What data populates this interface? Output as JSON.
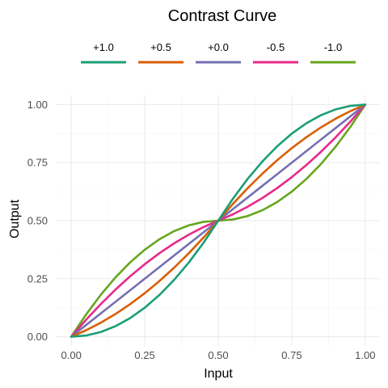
{
  "chart_data": {
    "type": "line",
    "title": "Contrast Curve",
    "xlabel": "Input",
    "ylabel": "Output",
    "xlim": [
      -0.05,
      1.05
    ],
    "ylim": [
      -0.04,
      1.04
    ],
    "x_ticks": [
      0.0,
      0.25,
      0.5,
      0.75,
      1.0
    ],
    "x_tick_labels": [
      "0.00",
      "0.25",
      "0.50",
      "0.75",
      "1.00"
    ],
    "y_ticks": [
      0.0,
      0.25,
      0.5,
      0.75,
      1.0
    ],
    "y_tick_labels": [
      "0.00",
      "0.25",
      "0.50",
      "0.75",
      "1.00"
    ],
    "grid": true,
    "legend_position": "top",
    "x": [
      0.0,
      0.05,
      0.1,
      0.15,
      0.2,
      0.25,
      0.3,
      0.35,
      0.4,
      0.45,
      0.5,
      0.55,
      0.6,
      0.65,
      0.7,
      0.75,
      0.8,
      0.85,
      0.9,
      0.95,
      1.0
    ],
    "series": [
      {
        "name": "+1.0",
        "color": "#1b9e77",
        "values": [
          0.0,
          0.005,
          0.02,
          0.045,
          0.08,
          0.125,
          0.18,
          0.245,
          0.32,
          0.405,
          0.5,
          0.595,
          0.68,
          0.755,
          0.82,
          0.875,
          0.92,
          0.955,
          0.98,
          0.995,
          1.0
        ]
      },
      {
        "name": "+0.5",
        "color": "#d95f02",
        "values": [
          0.0,
          0.0275,
          0.06,
          0.0975,
          0.14,
          0.1875,
          0.24,
          0.2975,
          0.36,
          0.4275,
          0.5,
          0.5725,
          0.64,
          0.7025,
          0.76,
          0.8125,
          0.86,
          0.9025,
          0.94,
          0.9725,
          1.0
        ]
      },
      {
        "name": "+0.0",
        "color": "#7570b3",
        "values": [
          0.0,
          0.05,
          0.1,
          0.15,
          0.2,
          0.25,
          0.3,
          0.35,
          0.4,
          0.45,
          0.5,
          0.55,
          0.6,
          0.65,
          0.7,
          0.75,
          0.8,
          0.85,
          0.9,
          0.95,
          1.0
        ]
      },
      {
        "name": "-0.5",
        "color": "#e7298a",
        "values": [
          0.0,
          0.0725,
          0.14,
          0.2025,
          0.26,
          0.3125,
          0.36,
          0.4025,
          0.44,
          0.4725,
          0.5,
          0.5275,
          0.56,
          0.5975,
          0.64,
          0.6875,
          0.74,
          0.7975,
          0.86,
          0.9275,
          1.0
        ]
      },
      {
        "name": "-1.0",
        "color": "#66a61e",
        "values": [
          0.0,
          0.095,
          0.18,
          0.255,
          0.32,
          0.375,
          0.42,
          0.455,
          0.48,
          0.495,
          0.5,
          0.505,
          0.52,
          0.545,
          0.58,
          0.625,
          0.68,
          0.745,
          0.82,
          0.905,
          1.0
        ]
      }
    ]
  }
}
